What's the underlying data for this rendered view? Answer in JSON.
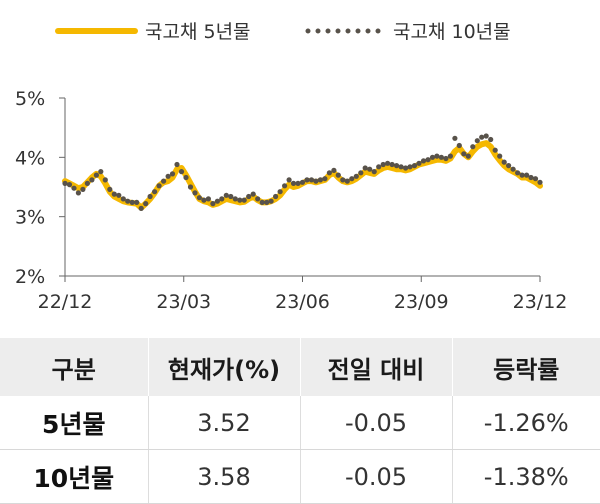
{
  "chart_data": {
    "type": "line",
    "ylim": [
      2,
      5
    ],
    "yticks": [
      2,
      3,
      4,
      5
    ],
    "yticklabels": [
      "2%",
      "3%",
      "4%",
      "5%"
    ],
    "xticklabels": [
      "22/12",
      "23/03",
      "23/06",
      "23/09",
      "23/12"
    ],
    "series": [
      {
        "name": "국고채 5년물",
        "color": "#f5b800",
        "style": "solid",
        "values": [
          3.6,
          3.56,
          3.52,
          3.48,
          3.5,
          3.58,
          3.66,
          3.72,
          3.68,
          3.56,
          3.42,
          3.34,
          3.3,
          3.26,
          3.24,
          3.23,
          3.22,
          3.15,
          3.22,
          3.3,
          3.4,
          3.52,
          3.58,
          3.6,
          3.66,
          3.8,
          3.82,
          3.7,
          3.56,
          3.42,
          3.3,
          3.26,
          3.24,
          3.2,
          3.22,
          3.26,
          3.3,
          3.28,
          3.26,
          3.24,
          3.25,
          3.3,
          3.34,
          3.28,
          3.24,
          3.24,
          3.26,
          3.3,
          3.36,
          3.46,
          3.54,
          3.5,
          3.52,
          3.56,
          3.6,
          3.6,
          3.58,
          3.6,
          3.62,
          3.7,
          3.74,
          3.66,
          3.6,
          3.58,
          3.6,
          3.64,
          3.7,
          3.76,
          3.74,
          3.72,
          3.78,
          3.82,
          3.84,
          3.82,
          3.8,
          3.8,
          3.78,
          3.8,
          3.84,
          3.88,
          3.9,
          3.92,
          3.94,
          3.96,
          3.96,
          3.94,
          3.98,
          4.1,
          4.16,
          4.06,
          4.0,
          4.1,
          4.18,
          4.22,
          4.24,
          4.18,
          4.05,
          3.95,
          3.86,
          3.8,
          3.76,
          3.72,
          3.66,
          3.66,
          3.62,
          3.58,
          3.52
        ]
      },
      {
        "name": "국고채 10년물",
        "color": "#58524a",
        "style": "dotted",
        "values": [
          3.56,
          3.54,
          3.48,
          3.4,
          3.46,
          3.56,
          3.62,
          3.7,
          3.76,
          3.62,
          3.46,
          3.38,
          3.36,
          3.3,
          3.26,
          3.24,
          3.24,
          3.14,
          3.22,
          3.34,
          3.42,
          3.52,
          3.6,
          3.68,
          3.72,
          3.88,
          3.76,
          3.66,
          3.5,
          3.4,
          3.32,
          3.28,
          3.3,
          3.22,
          3.26,
          3.3,
          3.36,
          3.34,
          3.3,
          3.28,
          3.28,
          3.34,
          3.38,
          3.3,
          3.24,
          3.24,
          3.26,
          3.34,
          3.42,
          3.52,
          3.62,
          3.56,
          3.56,
          3.58,
          3.62,
          3.62,
          3.6,
          3.62,
          3.64,
          3.74,
          3.78,
          3.7,
          3.62,
          3.6,
          3.64,
          3.68,
          3.74,
          3.82,
          3.8,
          3.76,
          3.84,
          3.88,
          3.9,
          3.88,
          3.86,
          3.84,
          3.82,
          3.84,
          3.86,
          3.9,
          3.94,
          3.96,
          4.0,
          4.02,
          4.0,
          3.98,
          4.02,
          4.32,
          4.2,
          4.06,
          4.02,
          4.18,
          4.28,
          4.34,
          4.36,
          4.3,
          4.12,
          4.02,
          3.92,
          3.86,
          3.8,
          3.74,
          3.7,
          3.7,
          3.66,
          3.64,
          3.58
        ]
      }
    ]
  },
  "table": {
    "headers": [
      "구분",
      "현재가(%)",
      "전일 대비",
      "등락률"
    ],
    "rows": [
      [
        "5년물",
        "3.52",
        "-0.05",
        "-1.26%"
      ],
      [
        "10년물",
        "3.58",
        "-0.05",
        "-1.38%"
      ]
    ]
  }
}
